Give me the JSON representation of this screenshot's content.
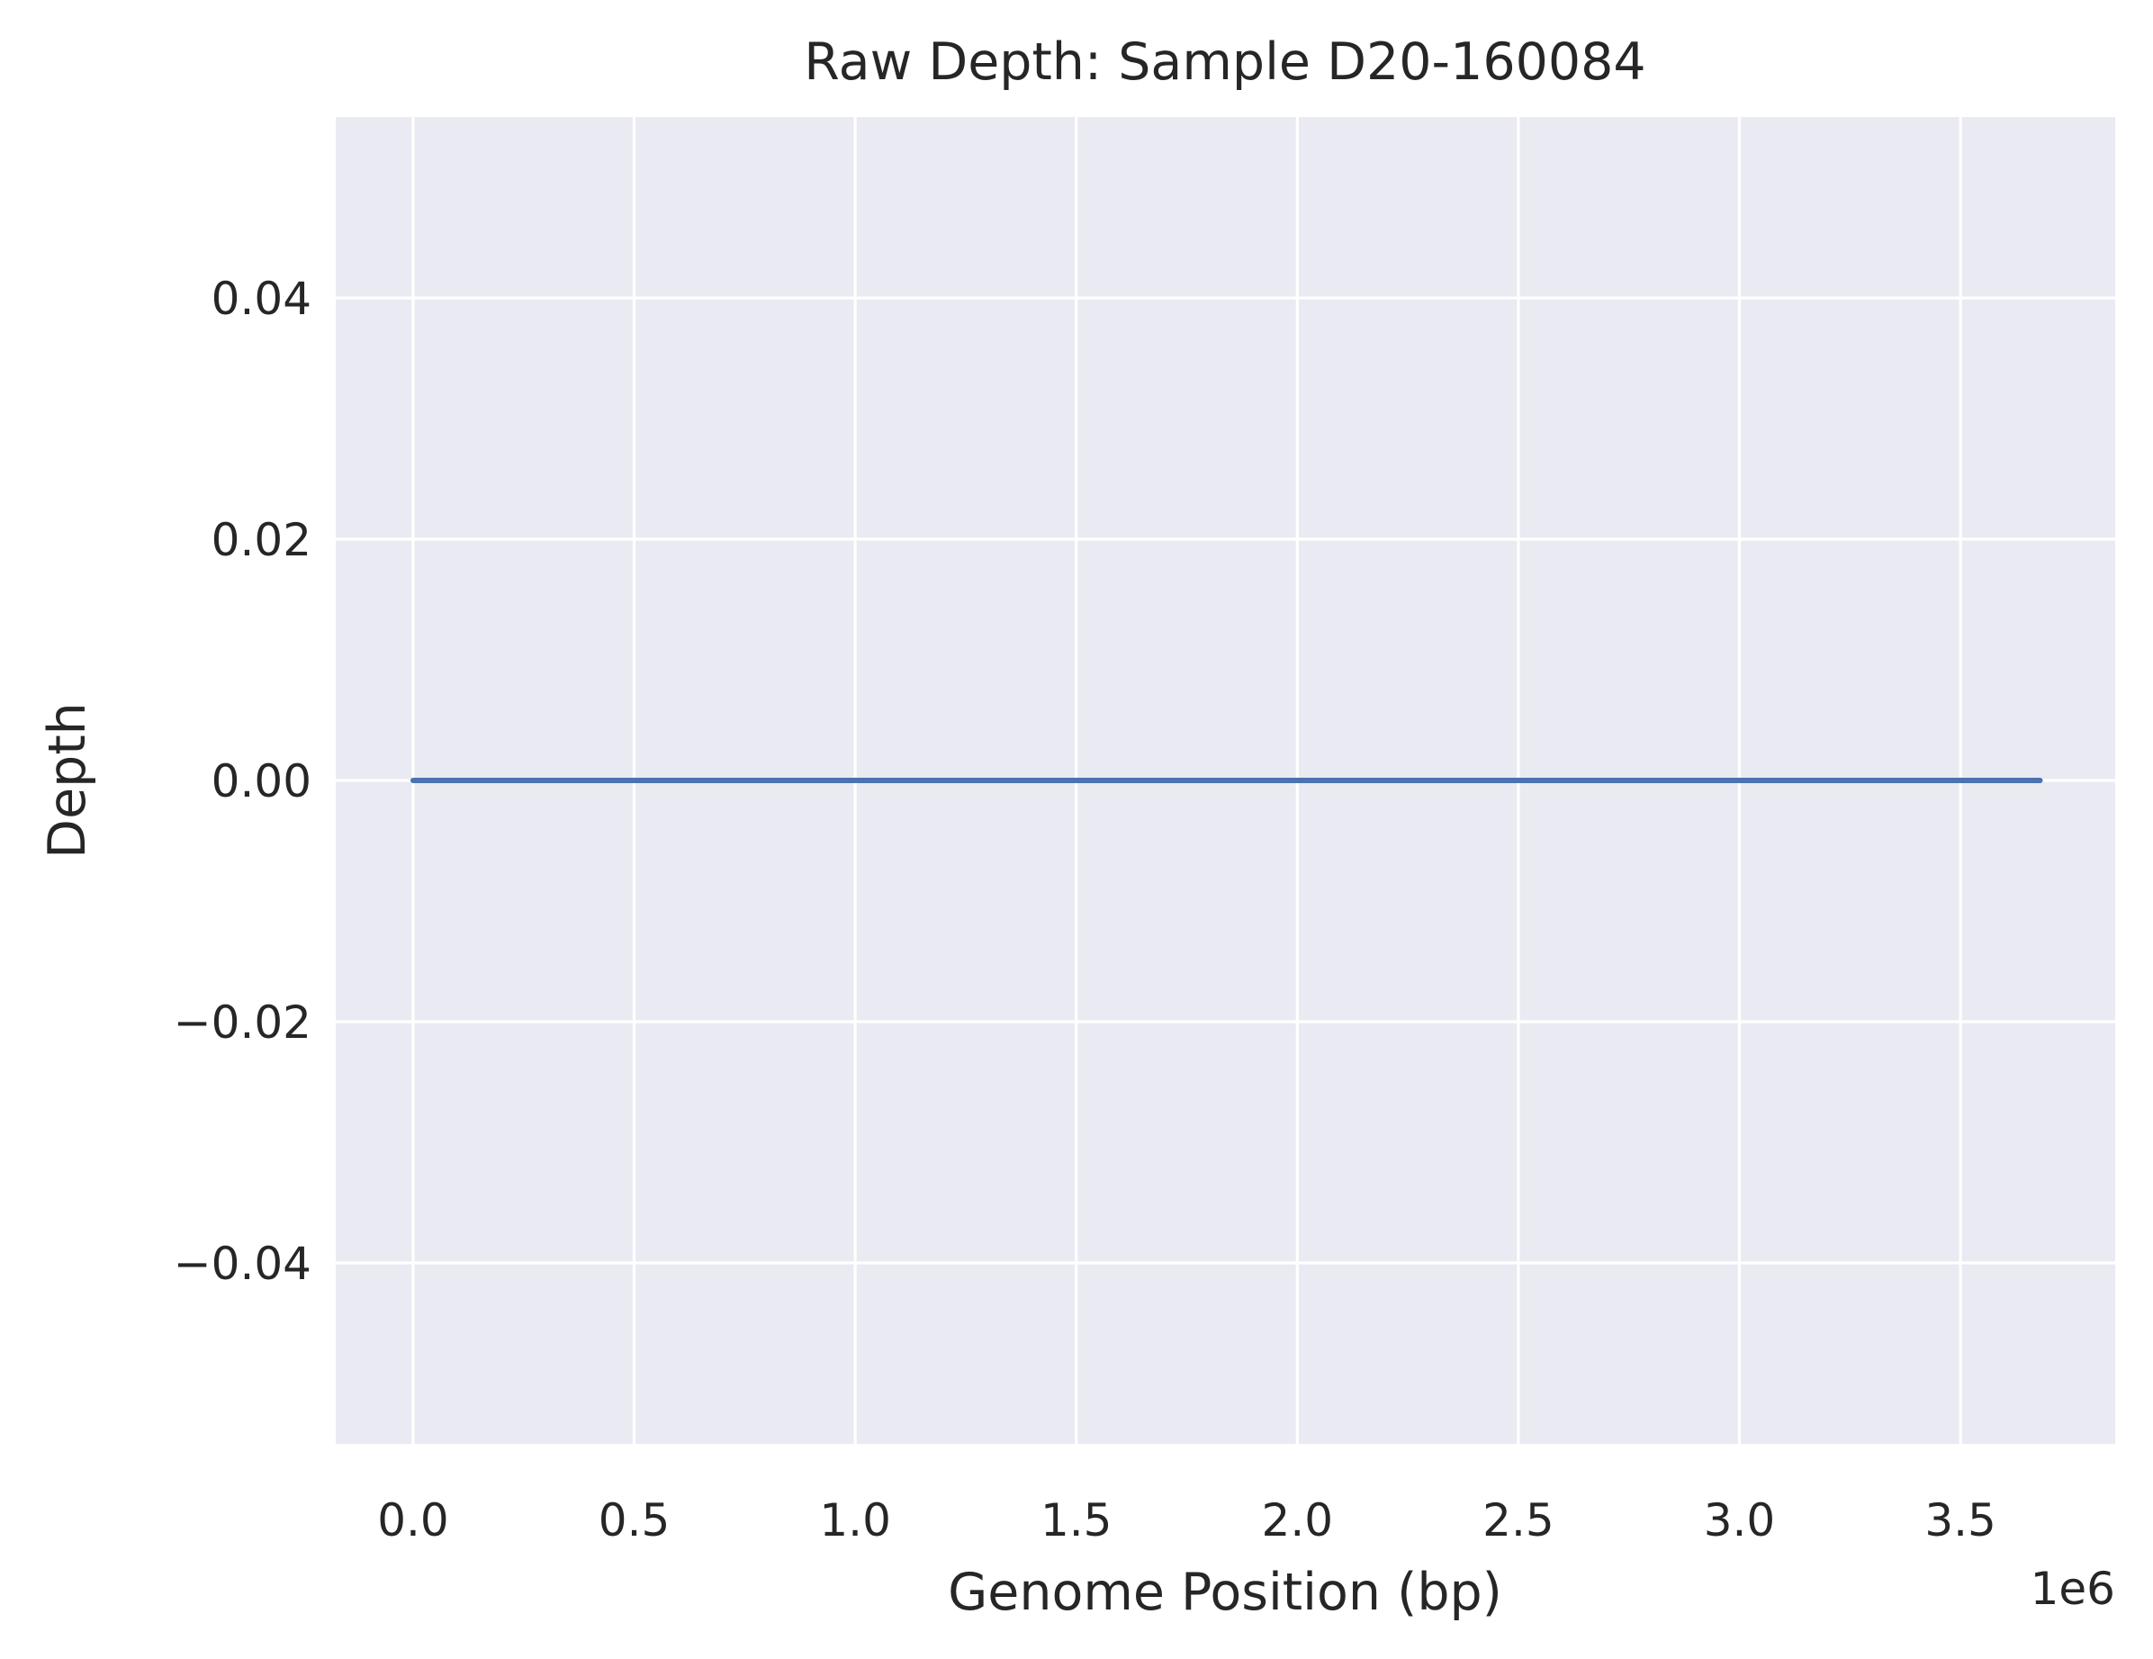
{
  "chart_data": {
    "type": "line",
    "title": "Raw Depth: Sample D20-160084",
    "xlabel": "Genome Position (bp)",
    "ylabel": "Depth",
    "x_offset_label": "1e6",
    "xlim": [
      -175000,
      3850000
    ],
    "ylim": [
      -0.055,
      0.055
    ],
    "x_ticks": [
      0,
      500000,
      1000000,
      1500000,
      2000000,
      2500000,
      3000000,
      3500000
    ],
    "x_tick_labels": [
      "0.0",
      "0.5",
      "1.0",
      "1.5",
      "2.0",
      "2.5",
      "3.0",
      "3.5"
    ],
    "y_ticks": [
      -0.04,
      -0.02,
      0,
      0.02,
      0.04
    ],
    "y_tick_labels": [
      "−0.04",
      "−0.02",
      "0.00",
      "0.02",
      "0.04"
    ],
    "grid": true,
    "colors": {
      "background": "#eaeaf2",
      "grid": "#ffffff",
      "line": "#4c72b0",
      "text": "#262626"
    },
    "series": [
      {
        "x": [
          0,
          3680000
        ],
        "y": [
          0,
          0
        ]
      }
    ]
  }
}
